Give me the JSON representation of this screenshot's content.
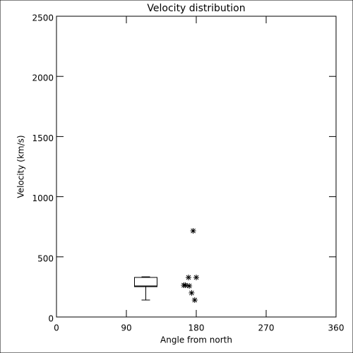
{
  "chart_data": {
    "type": "box",
    "title": "Velocity distribution",
    "xlabel": "Angle from north",
    "ylabel": "Velocity (km/s)",
    "xlim": [
      0,
      360
    ],
    "xticks": [
      0,
      90,
      180,
      270,
      360
    ],
    "ylim": [
      0,
      2500
    ],
    "yticks": [
      0,
      500,
      1000,
      1500,
      2000,
      2500
    ],
    "boxes": [
      {
        "x": 115,
        "whislo": 141,
        "q1": 252,
        "med": 258,
        "q3": 329,
        "whishi": 334
      }
    ],
    "points": {
      "x": [
        164,
        166,
        170,
        171,
        174,
        178,
        180,
        176
      ],
      "y": [
        264,
        264,
        329,
        258,
        200,
        141,
        329,
        716
      ]
    },
    "color": "#000000"
  }
}
